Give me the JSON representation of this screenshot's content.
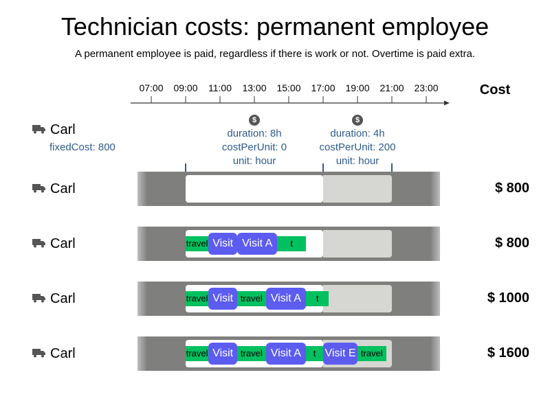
{
  "title": "Technician costs: permanent employee",
  "subtitle": "A permanent employee is paid, regardless if there is work or not. Overtime is paid extra.",
  "timeline": {
    "ticks": [
      "07:00",
      "09:00",
      "11:00",
      "13:00",
      "15:00",
      "17:00",
      "19:00",
      "21:00",
      "23:00"
    ]
  },
  "cost_header": "Cost",
  "technician": {
    "name": "Carl",
    "fixed_cost": "fixedCost: 800"
  },
  "periods": [
    {
      "symbol": "$",
      "duration": "duration: 8h",
      "cost_per_unit": "costPerUnit: 0",
      "unit": "unit: hour"
    },
    {
      "symbol": "$",
      "duration": "duration: 4h",
      "cost_per_unit": "costPerUnit: 200",
      "unit": "unit: hour"
    }
  ],
  "rows": [
    {
      "name": "Carl",
      "cost": "$ 800",
      "segments": []
    },
    {
      "name": "Carl",
      "cost": "$ 800",
      "segments": [
        {
          "kind": "travel",
          "label": "travel",
          "start": "09:00",
          "end": "10:20"
        },
        {
          "kind": "visit",
          "label": "Visit E",
          "start": "10:20",
          "end": "12:00"
        },
        {
          "kind": "travel",
          "label": "t",
          "start": "12:00",
          "end": "12:00"
        },
        {
          "kind": "visit",
          "label": "Visit A",
          "start": "12:00",
          "end": "14:20"
        },
        {
          "kind": "travel",
          "label": "t",
          "start": "14:20",
          "end": "16:00"
        }
      ]
    },
    {
      "name": "Carl",
      "cost": "$ 1000",
      "segments": [
        {
          "kind": "travel",
          "label": "travel",
          "start": "09:00",
          "end": "10:20"
        },
        {
          "kind": "visit",
          "label": "Visit C",
          "start": "10:20",
          "end": "12:00"
        },
        {
          "kind": "travel",
          "label": "travel",
          "start": "12:00",
          "end": "13:40"
        },
        {
          "kind": "visit",
          "label": "Visit A",
          "start": "13:40",
          "end": "16:00"
        },
        {
          "kind": "travel",
          "label": "t",
          "start": "16:00",
          "end": "17:20"
        }
      ]
    },
    {
      "name": "Carl",
      "cost": "$ 1600",
      "segments": [
        {
          "kind": "travel",
          "label": "travel",
          "start": "09:00",
          "end": "10:20"
        },
        {
          "kind": "visit",
          "label": "Visit C",
          "start": "10:20",
          "end": "12:00"
        },
        {
          "kind": "travel",
          "label": "travel",
          "start": "12:00",
          "end": "13:40"
        },
        {
          "kind": "visit",
          "label": "Visit A",
          "start": "13:40",
          "end": "16:00"
        },
        {
          "kind": "travel",
          "label": "t",
          "start": "16:00",
          "end": "17:00"
        },
        {
          "kind": "visit",
          "label": "Visit E",
          "start": "17:00",
          "end": "19:00"
        },
        {
          "kind": "travel",
          "label": "travel",
          "start": "19:00",
          "end": "20:40"
        }
      ]
    }
  ],
  "colors": {
    "travel": "#00c060",
    "visit": "#5c5cf0",
    "band": "#7f7f7d",
    "overtime": "#d6d7d2",
    "annotation": "#2f5a8c"
  }
}
